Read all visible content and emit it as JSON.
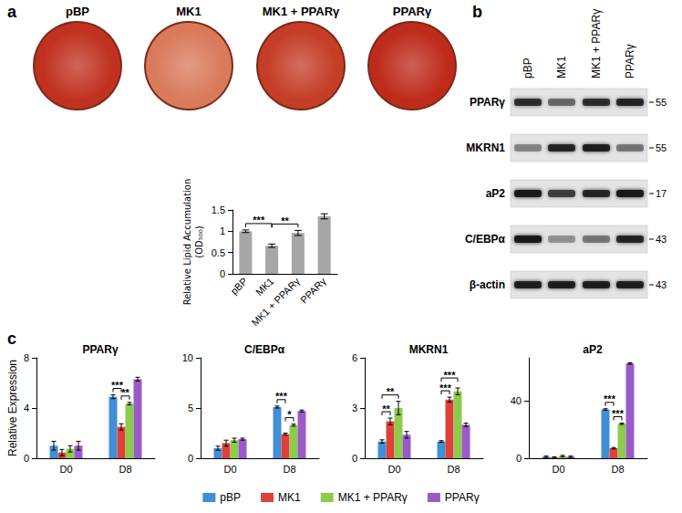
{
  "panel_labels": [
    "a",
    "b",
    "c"
  ],
  "plates": {
    "labels": [
      "pBP",
      "MK1",
      "MK1 + PPARγ",
      "PPARγ"
    ],
    "colors": [
      "#c0311f",
      "#d97a5a",
      "#c43d26",
      "#be2b1b"
    ]
  },
  "blot": {
    "lanes": [
      "pBP",
      "MK1",
      "MK1 + PPARγ",
      "PPARγ"
    ],
    "rows": [
      {
        "label": "PPARγ",
        "mw": 55,
        "bands": [
          0.8,
          0.5,
          0.8,
          0.85
        ]
      },
      {
        "label": "MKRN1",
        "mw": 55,
        "bands": [
          0.4,
          0.85,
          0.9,
          0.45
        ]
      },
      {
        "label": "aP2",
        "mw": 17,
        "bands": [
          0.95,
          0.7,
          0.85,
          0.95
        ]
      },
      {
        "label": "C/EBPα",
        "mw": 43,
        "bands": [
          0.95,
          0.35,
          0.45,
          0.85
        ]
      },
      {
        "label": "β-actin",
        "mw": 43,
        "bands": [
          0.9,
          0.9,
          0.9,
          0.9
        ]
      }
    ]
  },
  "chart_data": [
    {
      "type": "bar",
      "y_label": "Relative Lipid Accumulation (OD₅₀₀)",
      "categories": [
        "pBP",
        "MK1",
        "MK1 + PPARγ",
        "PPARγ"
      ],
      "values": [
        1.0,
        0.66,
        0.96,
        1.35
      ],
      "errors": [
        0.03,
        0.04,
        0.06,
        0.06
      ],
      "color": "#a6a6a6",
      "ylim": [
        0,
        1.5
      ],
      "yticks": [
        0,
        0.5,
        1,
        1.5
      ],
      "grid": false,
      "annotations": [
        {
          "from": "pBP",
          "to": "MK1",
          "label": "***"
        },
        {
          "from": "MK1",
          "to": "MK1 + PPARγ",
          "label": "**"
        }
      ]
    },
    {
      "type": "bar",
      "title": "PPARγ",
      "y_label": "Relative Expression",
      "categories": [
        "D0",
        "D8"
      ],
      "series": [
        {
          "name": "pBP",
          "color": "#3f8fd6",
          "values": [
            1.0,
            4.9
          ],
          "errors": [
            0.35,
            0.15
          ]
        },
        {
          "name": "MK1",
          "color": "#e0403a",
          "values": [
            0.45,
            2.5
          ],
          "errors": [
            0.25,
            0.25
          ]
        },
        {
          "name": "MK1 + PPARγ",
          "color": "#8ccc4a",
          "values": [
            0.75,
            4.35
          ],
          "errors": [
            0.25,
            0.1
          ]
        },
        {
          "name": "PPARγ",
          "color": "#9a5bc9",
          "values": [
            1.0,
            6.3
          ],
          "errors": [
            0.35,
            0.15
          ]
        }
      ],
      "ylim": [
        0,
        8
      ],
      "yticks": [
        0,
        4,
        8
      ],
      "grid": false,
      "legend": "bottom",
      "annotations": [
        {
          "category": "D8",
          "from": "pBP",
          "to": "MK1",
          "label": "***"
        },
        {
          "category": "D8",
          "from": "MK1",
          "to": "MK1 + PPARγ",
          "label": "**"
        }
      ]
    },
    {
      "type": "bar",
      "title": "C/EBPα",
      "categories": [
        "D0",
        "D8"
      ],
      "series": [
        {
          "name": "pBP",
          "color": "#3f8fd6",
          "values": [
            1.0,
            5.1
          ],
          "errors": [
            0.2,
            0.1
          ]
        },
        {
          "name": "MK1",
          "color": "#e0403a",
          "values": [
            1.5,
            2.4
          ],
          "errors": [
            0.3,
            0.1
          ]
        },
        {
          "name": "MK1 + PPARγ",
          "color": "#8ccc4a",
          "values": [
            1.8,
            3.3
          ],
          "errors": [
            0.2,
            0.1
          ]
        },
        {
          "name": "PPARγ",
          "color": "#9a5bc9",
          "values": [
            1.9,
            4.7
          ],
          "errors": [
            0.1,
            0.1
          ]
        }
      ],
      "ylim": [
        0,
        10
      ],
      "yticks": [
        0,
        5,
        10
      ],
      "grid": false,
      "legend": "bottom",
      "annotations": [
        {
          "category": "D8",
          "from": "pBP",
          "to": "MK1",
          "label": "***"
        },
        {
          "category": "D8",
          "from": "MK1",
          "to": "MK1 + PPARγ",
          "label": "*"
        }
      ]
    },
    {
      "type": "bar",
      "title": "MKRN1",
      "categories": [
        "D0",
        "D8"
      ],
      "series": [
        {
          "name": "pBP",
          "color": "#3f8fd6",
          "values": [
            1.0,
            1.0
          ],
          "errors": [
            0.1,
            0.05
          ]
        },
        {
          "name": "MK1",
          "color": "#e0403a",
          "values": [
            2.2,
            3.5
          ],
          "errors": [
            0.2,
            0.15
          ]
        },
        {
          "name": "MK1 + PPARγ",
          "color": "#8ccc4a",
          "values": [
            3.0,
            4.0
          ],
          "errors": [
            0.4,
            0.2
          ]
        },
        {
          "name": "PPARγ",
          "color": "#9a5bc9",
          "values": [
            1.4,
            2.0
          ],
          "errors": [
            0.2,
            0.1
          ]
        }
      ],
      "ylim": [
        0,
        6
      ],
      "yticks": [
        0,
        3,
        6
      ],
      "grid": false,
      "legend": "bottom",
      "annotations": [
        {
          "category": "D0",
          "from": "pBP",
          "to": "MK1",
          "label": "**"
        },
        {
          "category": "D0",
          "from": "pBP",
          "to": "MK1 + PPARγ",
          "label": "**"
        },
        {
          "category": "D8",
          "from": "pBP",
          "to": "MK1",
          "label": "***"
        },
        {
          "category": "D8",
          "from": "pBP",
          "to": "MK1 + PPARγ",
          "label": "***"
        }
      ]
    },
    {
      "type": "bar",
      "title": "aP2",
      "categories": [
        "D0",
        "D8"
      ],
      "series": [
        {
          "name": "pBP",
          "color": "#3f8fd6",
          "values": [
            1.0,
            34
          ],
          "errors": [
            0.5,
            0.5
          ]
        },
        {
          "name": "MK1",
          "color": "#e0403a",
          "values": [
            0.5,
            7
          ],
          "errors": [
            0.5,
            0.5
          ]
        },
        {
          "name": "MK1 + PPARγ",
          "color": "#8ccc4a",
          "values": [
            1.5,
            24
          ],
          "errors": [
            0.5,
            0.5
          ]
        },
        {
          "name": "PPARγ",
          "color": "#9a5bc9",
          "values": [
            1.0,
            66
          ],
          "errors": [
            0.5,
            0.5
          ]
        }
      ],
      "ylim": [
        0,
        70
      ],
      "yticks": [
        0,
        40
      ],
      "grid": false,
      "legend": "bottom",
      "annotations": [
        {
          "category": "D8",
          "from": "pBP",
          "to": "MK1",
          "label": "***"
        },
        {
          "category": "D8",
          "from": "MK1",
          "to": "MK1 + PPARγ",
          "label": "***"
        }
      ]
    }
  ]
}
